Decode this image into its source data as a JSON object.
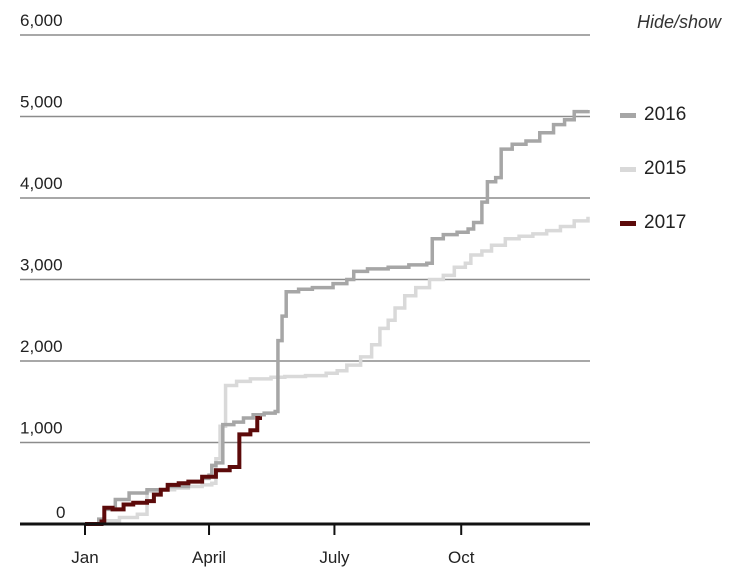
{
  "legend": {
    "toggle_label": "Hide/show"
  },
  "chart_data": {
    "type": "line",
    "step": true,
    "x_unit": "day of year",
    "xlim": [
      0,
      365
    ],
    "ylim": [
      0,
      6000
    ],
    "y_ticks": [
      0,
      1000,
      2000,
      3000,
      4000,
      5000,
      6000
    ],
    "y_tick_labels": [
      "0",
      "1,000",
      "2,000",
      "3,000",
      "4,000",
      "5,000",
      "6,000"
    ],
    "x_ticks": [
      0,
      90,
      181,
      273
    ],
    "x_tick_labels": [
      "Jan",
      "April",
      "July",
      "Oct"
    ],
    "grid": "horizontal",
    "legend_position": "right",
    "series": [
      {
        "name": "2016",
        "color": "#a6a6a6",
        "points": [
          [
            0,
            0
          ],
          [
            10,
            60
          ],
          [
            14,
            180
          ],
          [
            22,
            300
          ],
          [
            32,
            380
          ],
          [
            45,
            420
          ],
          [
            60,
            460
          ],
          [
            75,
            520
          ],
          [
            85,
            560
          ],
          [
            90,
            600
          ],
          [
            92,
            720
          ],
          [
            95,
            750
          ],
          [
            100,
            1220
          ],
          [
            108,
            1250
          ],
          [
            115,
            1300
          ],
          [
            122,
            1340
          ],
          [
            130,
            1360
          ],
          [
            138,
            1380
          ],
          [
            140,
            2250
          ],
          [
            143,
            2550
          ],
          [
            146,
            2850
          ],
          [
            155,
            2880
          ],
          [
            165,
            2900
          ],
          [
            180,
            2950
          ],
          [
            190,
            3000
          ],
          [
            195,
            3100
          ],
          [
            205,
            3130
          ],
          [
            220,
            3150
          ],
          [
            235,
            3180
          ],
          [
            248,
            3200
          ],
          [
            252,
            3500
          ],
          [
            260,
            3550
          ],
          [
            270,
            3580
          ],
          [
            278,
            3620
          ],
          [
            282,
            3700
          ],
          [
            288,
            3950
          ],
          [
            292,
            4200
          ],
          [
            298,
            4250
          ],
          [
            302,
            4600
          ],
          [
            310,
            4660
          ],
          [
            320,
            4700
          ],
          [
            330,
            4800
          ],
          [
            340,
            4900
          ],
          [
            348,
            4960
          ],
          [
            355,
            5060
          ],
          [
            365,
            5080
          ]
        ]
      },
      {
        "name": "2015",
        "color": "#d9d9d9",
        "points": [
          [
            0,
            0
          ],
          [
            12,
            40
          ],
          [
            25,
            80
          ],
          [
            38,
            120
          ],
          [
            45,
            400
          ],
          [
            55,
            420
          ],
          [
            65,
            440
          ],
          [
            75,
            460
          ],
          [
            85,
            480
          ],
          [
            92,
            500
          ],
          [
            95,
            800
          ],
          [
            98,
            1200
          ],
          [
            102,
            1700
          ],
          [
            110,
            1750
          ],
          [
            120,
            1780
          ],
          [
            135,
            1800
          ],
          [
            145,
            1810
          ],
          [
            160,
            1820
          ],
          [
            175,
            1850
          ],
          [
            183,
            1880
          ],
          [
            190,
            1950
          ],
          [
            200,
            2050
          ],
          [
            208,
            2200
          ],
          [
            214,
            2400
          ],
          [
            220,
            2500
          ],
          [
            225,
            2650
          ],
          [
            232,
            2800
          ],
          [
            240,
            2900
          ],
          [
            250,
            3000
          ],
          [
            260,
            3050
          ],
          [
            268,
            3150
          ],
          [
            276,
            3200
          ],
          [
            280,
            3300
          ],
          [
            288,
            3350
          ],
          [
            295,
            3420
          ],
          [
            305,
            3500
          ],
          [
            315,
            3530
          ],
          [
            325,
            3560
          ],
          [
            335,
            3600
          ],
          [
            345,
            3650
          ],
          [
            355,
            3720
          ],
          [
            365,
            3770
          ]
        ]
      },
      {
        "name": "2017",
        "color": "#5c0a0a",
        "points": [
          [
            0,
            0
          ],
          [
            12,
            30
          ],
          [
            14,
            200
          ],
          [
            20,
            180
          ],
          [
            28,
            240
          ],
          [
            35,
            260
          ],
          [
            45,
            280
          ],
          [
            50,
            360
          ],
          [
            55,
            420
          ],
          [
            60,
            480
          ],
          [
            68,
            500
          ],
          [
            75,
            520
          ],
          [
            85,
            580
          ],
          [
            95,
            660
          ],
          [
            105,
            700
          ],
          [
            112,
            1100
          ],
          [
            120,
            1150
          ],
          [
            125,
            1300
          ],
          [
            127,
            1320
          ]
        ]
      }
    ]
  }
}
